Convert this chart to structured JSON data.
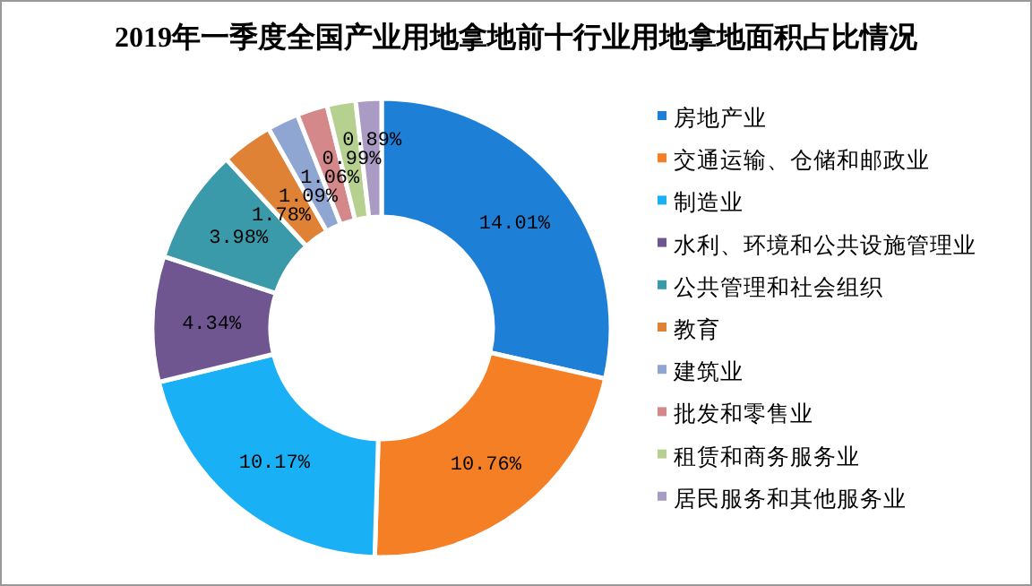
{
  "chart_data": {
    "type": "donut",
    "title": "2019年一季度全国产业用地拿地前十行业用地拿地面积占比情况",
    "categories": [
      "房地产业",
      "交通运输、仓储和邮政业",
      "制造业",
      "水利、环境和公共设施管理业",
      "公共管理和社会组织",
      "教育",
      "建筑业",
      "批发和零售业",
      "租赁和商务服务业",
      "居民服务和其他服务业"
    ],
    "values": [
      14.01,
      10.76,
      10.17,
      4.34,
      3.98,
      1.78,
      1.09,
      1.06,
      0.99,
      0.89
    ],
    "value_labels": [
      "14.01%",
      "10.76%",
      "10.17%",
      "4.34%",
      "3.98%",
      "1.78%",
      "1.09%",
      "1.06%",
      "0.99%",
      "0.89%"
    ],
    "colors": [
      "#1e7fd6",
      "#f57f25",
      "#1ab0f5",
      "#6f5690",
      "#3a9aaa",
      "#e08236",
      "#8fa6d2",
      "#d4888a",
      "#b6d18f",
      "#a99bc3"
    ],
    "legend": "right"
  }
}
